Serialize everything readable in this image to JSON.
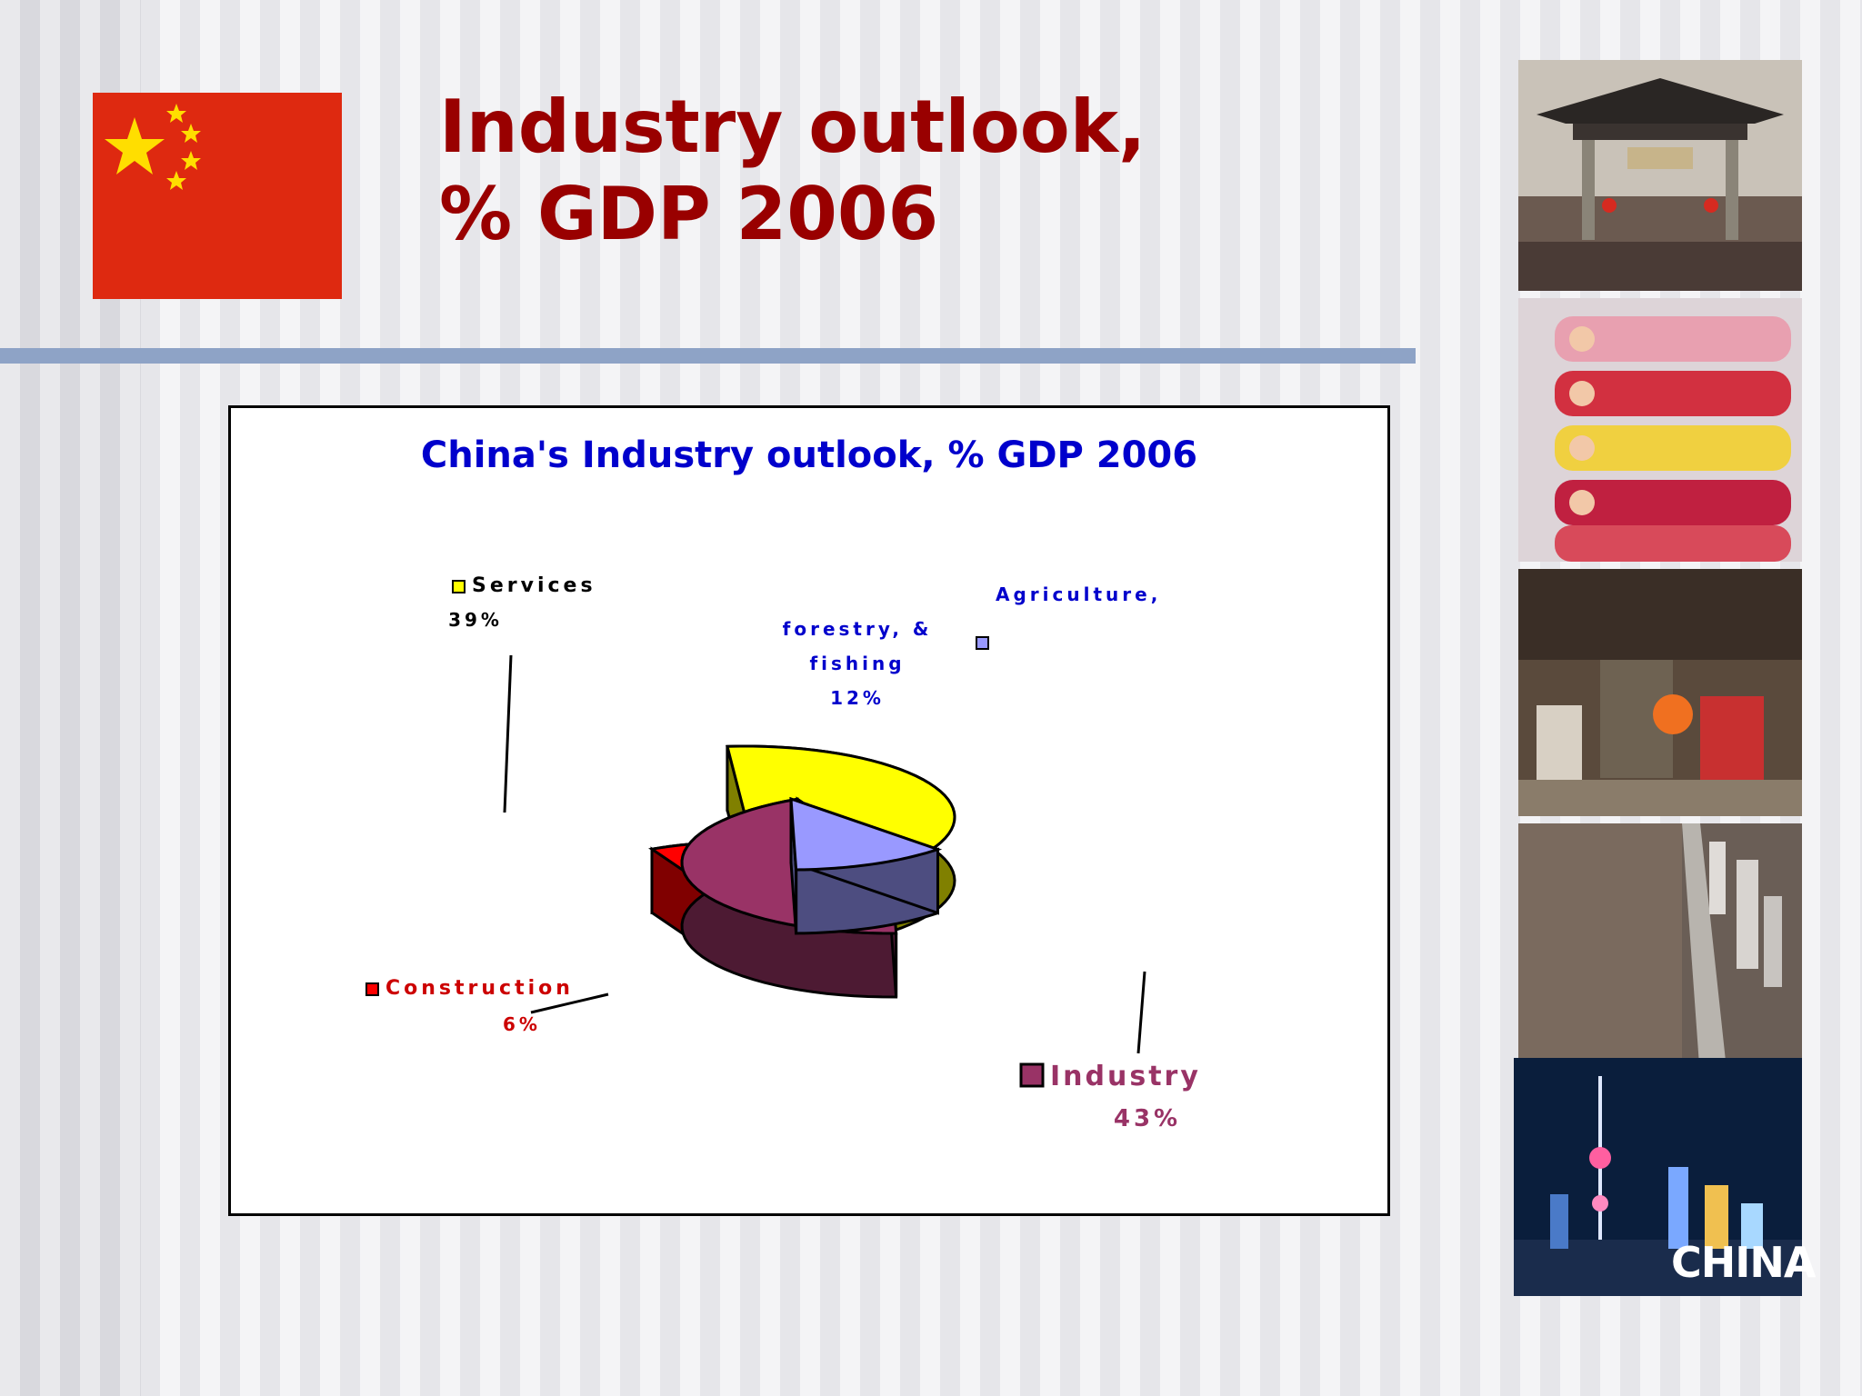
{
  "slide": {
    "title_line1": "Industry outlook,",
    "title_line2": "% GDP 2006",
    "brand": "CHINA"
  },
  "photos": [
    {
      "icon": "gate-photo-icon"
    },
    {
      "icon": "babies-photo-icon"
    },
    {
      "icon": "kitchen-photo-icon"
    },
    {
      "icon": "city-aerial-photo-icon"
    },
    {
      "icon": "skyline-night-photo-icon"
    }
  ],
  "chart_data": {
    "type": "pie",
    "title": "China's Industry outlook, % GDP 2006",
    "style": "3d-exploded",
    "legend_placement": "callouts",
    "slices": [
      {
        "label": "Services",
        "value": 39,
        "value_label": "39%",
        "color": "#ffff00",
        "side_color": "#808000",
        "text_color": "#000000"
      },
      {
        "label": "Agriculture, forestry, & fishing",
        "label_lines": [
          "Agriculture,",
          "forestry, &",
          "fishing"
        ],
        "value": 12,
        "value_label": "12%",
        "color": "#9999ff",
        "side_color": "#4d4d80",
        "text_color": "#0000cc"
      },
      {
        "label": "Industry",
        "value": 43,
        "value_label": "43%",
        "color": "#993366",
        "side_color": "#4d1a33",
        "text_color": "#993366"
      },
      {
        "label": "Construction",
        "value": 6,
        "value_label": "6%",
        "color": "#ff0000",
        "side_color": "#800000",
        "text_color": "#cc0000"
      }
    ]
  }
}
